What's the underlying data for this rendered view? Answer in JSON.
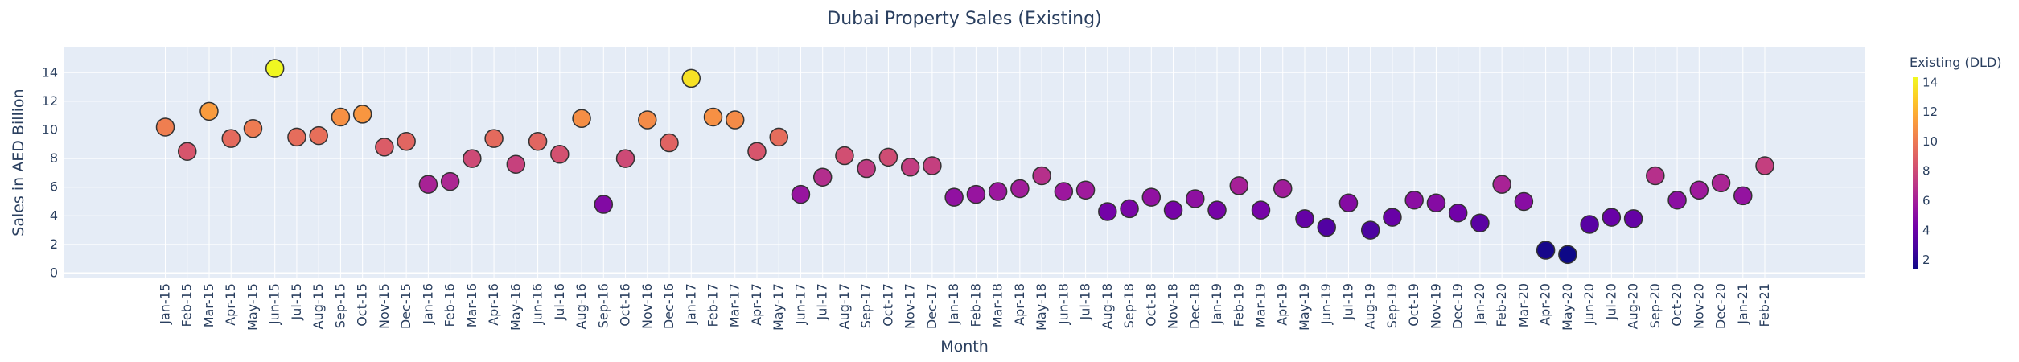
{
  "chart_data": {
    "type": "scatter",
    "title": "Dubai Property Sales (Existing)",
    "xlabel": "Month",
    "ylabel": "Sales in AED Billion",
    "ylim": [
      0,
      15
    ],
    "yticks": [
      0,
      2,
      4,
      6,
      8,
      10,
      12,
      14
    ],
    "colorbar": {
      "title": "Existing (DLD)",
      "ticks": [
        2,
        4,
        6,
        8,
        10,
        12,
        14
      ],
      "range": [
        1.35,
        14.35
      ],
      "colors": [
        "#0d0887",
        "#46039f",
        "#7201a8",
        "#9c179e",
        "#bd3786",
        "#d8576b",
        "#ed7953",
        "#fb9f3a",
        "#fdca26",
        "#f0f921"
      ]
    },
    "grid": true,
    "legend": "none",
    "x": [
      "Jan-15",
      "Feb-15",
      "Mar-15",
      "Apr-15",
      "May-15",
      "Jun-15",
      "Jul-15",
      "Aug-15",
      "Sep-15",
      "Oct-15",
      "Nov-15",
      "Dec-15",
      "Jan-16",
      "Feb-16",
      "Mar-16",
      "Apr-16",
      "May-16",
      "Jun-16",
      "Jul-16",
      "Aug-16",
      "Sep-16",
      "Oct-16",
      "Nov-16",
      "Dec-16",
      "Jan-17",
      "Feb-17",
      "Mar-17",
      "Apr-17",
      "May-17",
      "Jun-17",
      "Jul-17",
      "Aug-17",
      "Sep-17",
      "Oct-17",
      "Nov-17",
      "Dec-17",
      "Jan-18",
      "Feb-18",
      "Mar-18",
      "Apr-18",
      "May-18",
      "Jun-18",
      "Jul-18",
      "Aug-18",
      "Sep-18",
      "Oct-18",
      "Nov-18",
      "Dec-18",
      "Jan-19",
      "Feb-19",
      "Mar-19",
      "Apr-19",
      "May-19",
      "Jun-19",
      "Jul-19",
      "Aug-19",
      "Sep-19",
      "Oct-19",
      "Nov-19",
      "Dec-19",
      "Jan-20",
      "Feb-20",
      "Mar-20",
      "Apr-20",
      "May-20",
      "Jun-20",
      "Jul-20",
      "Aug-20",
      "Sep-20",
      "Oct-20",
      "Nov-20",
      "Dec-20",
      "Jan-21",
      "Feb-21"
    ],
    "y": [
      10.2,
      8.5,
      11.3,
      9.4,
      10.1,
      14.3,
      9.5,
      9.6,
      10.9,
      11.1,
      8.8,
      9.2,
      6.2,
      6.4,
      8.0,
      9.4,
      7.6,
      9.2,
      8.3,
      10.8,
      4.8,
      8.0,
      10.7,
      9.1,
      13.6,
      10.9,
      10.7,
      8.5,
      9.5,
      5.5,
      6.7,
      8.2,
      7.3,
      8.1,
      7.4,
      7.5,
      5.3,
      5.5,
      5.7,
      5.9,
      6.8,
      5.7,
      5.8,
      4.3,
      4.5,
      5.3,
      4.4,
      5.2,
      4.4,
      6.1,
      4.4,
      5.9,
      3.8,
      3.2,
      4.9,
      3.0,
      3.9,
      5.1,
      4.9,
      4.2,
      3.5,
      6.2,
      5.0,
      1.6,
      1.3,
      3.4,
      3.9,
      3.8,
      6.8,
      5.1,
      5.8,
      6.3,
      5.4,
      7.5
    ]
  }
}
